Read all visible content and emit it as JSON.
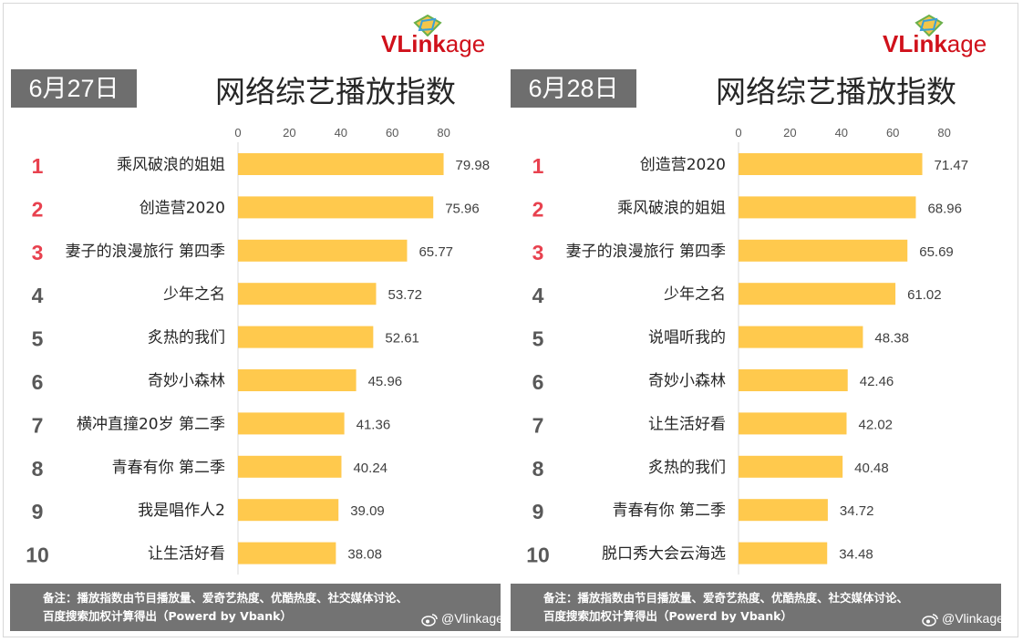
{
  "logo": {
    "brand_bold": "VLink",
    "brand_light": "age"
  },
  "title": "网络综艺播放指数",
  "footer": {
    "line1": "备注：播放指数由节目播放量、爱奇艺热度、优酷热度、社交媒体讨论、",
    "line2": "百度搜索加权计算得出（Powerd by Vbank）",
    "watermark": "@Vlinkage"
  },
  "colors": {
    "bar": "#ffc94d",
    "rank_top": "#e8424f",
    "rank_other": "#595959",
    "date_box": "#6e6e6e",
    "footer_bg": "#737373",
    "brand": "#d0111b"
  },
  "chart_data": [
    {
      "type": "bar",
      "orientation": "horizontal",
      "date": "6月27日",
      "title": "网络综艺播放指数",
      "xlim": [
        0,
        80
      ],
      "xticks": [
        0,
        20,
        40,
        60,
        80
      ],
      "ranks": [
        "1",
        "2",
        "3",
        "4",
        "5",
        "6",
        "7",
        "8",
        "9",
        "10"
      ],
      "categories": [
        "乘风破浪的姐姐",
        "创造营2020",
        "妻子的浪漫旅行 第四季",
        "少年之名",
        "炙热的我们",
        "奇妙小森林",
        "横冲直撞20岁 第二季",
        "青春有你 第二季",
        "我是唱作人2",
        "让生活好看"
      ],
      "values": [
        79.98,
        75.96,
        65.77,
        53.72,
        52.61,
        45.96,
        41.36,
        40.24,
        39.09,
        38.08
      ],
      "value_labels": [
        "79.98",
        "75.96",
        "65.77",
        "53.72",
        "52.61",
        "45.96",
        "41.36",
        "40.24",
        "39.09",
        "38.08"
      ],
      "grid": false,
      "legend": "none"
    },
    {
      "type": "bar",
      "orientation": "horizontal",
      "date": "6月28日",
      "title": "网络综艺播放指数",
      "xlim": [
        0,
        80
      ],
      "xticks": [
        0,
        20,
        40,
        60,
        80
      ],
      "ranks": [
        "1",
        "2",
        "3",
        "4",
        "5",
        "6",
        "7",
        "8",
        "9",
        "10"
      ],
      "categories": [
        "创造营2020",
        "乘风破浪的姐姐",
        "妻子的浪漫旅行 第四季",
        "少年之名",
        "说唱听我的",
        "奇妙小森林",
        "让生活好看",
        "炙热的我们",
        "青春有你 第二季",
        "脱口秀大会云海选"
      ],
      "values": [
        71.47,
        68.96,
        65.69,
        61.02,
        48.38,
        42.46,
        42.02,
        40.48,
        34.72,
        34.48
      ],
      "value_labels": [
        "71.47",
        "68.96",
        "65.69",
        "61.02",
        "48.38",
        "42.46",
        "42.02",
        "40.48",
        "34.72",
        "34.48"
      ],
      "grid": false,
      "legend": "none"
    }
  ]
}
